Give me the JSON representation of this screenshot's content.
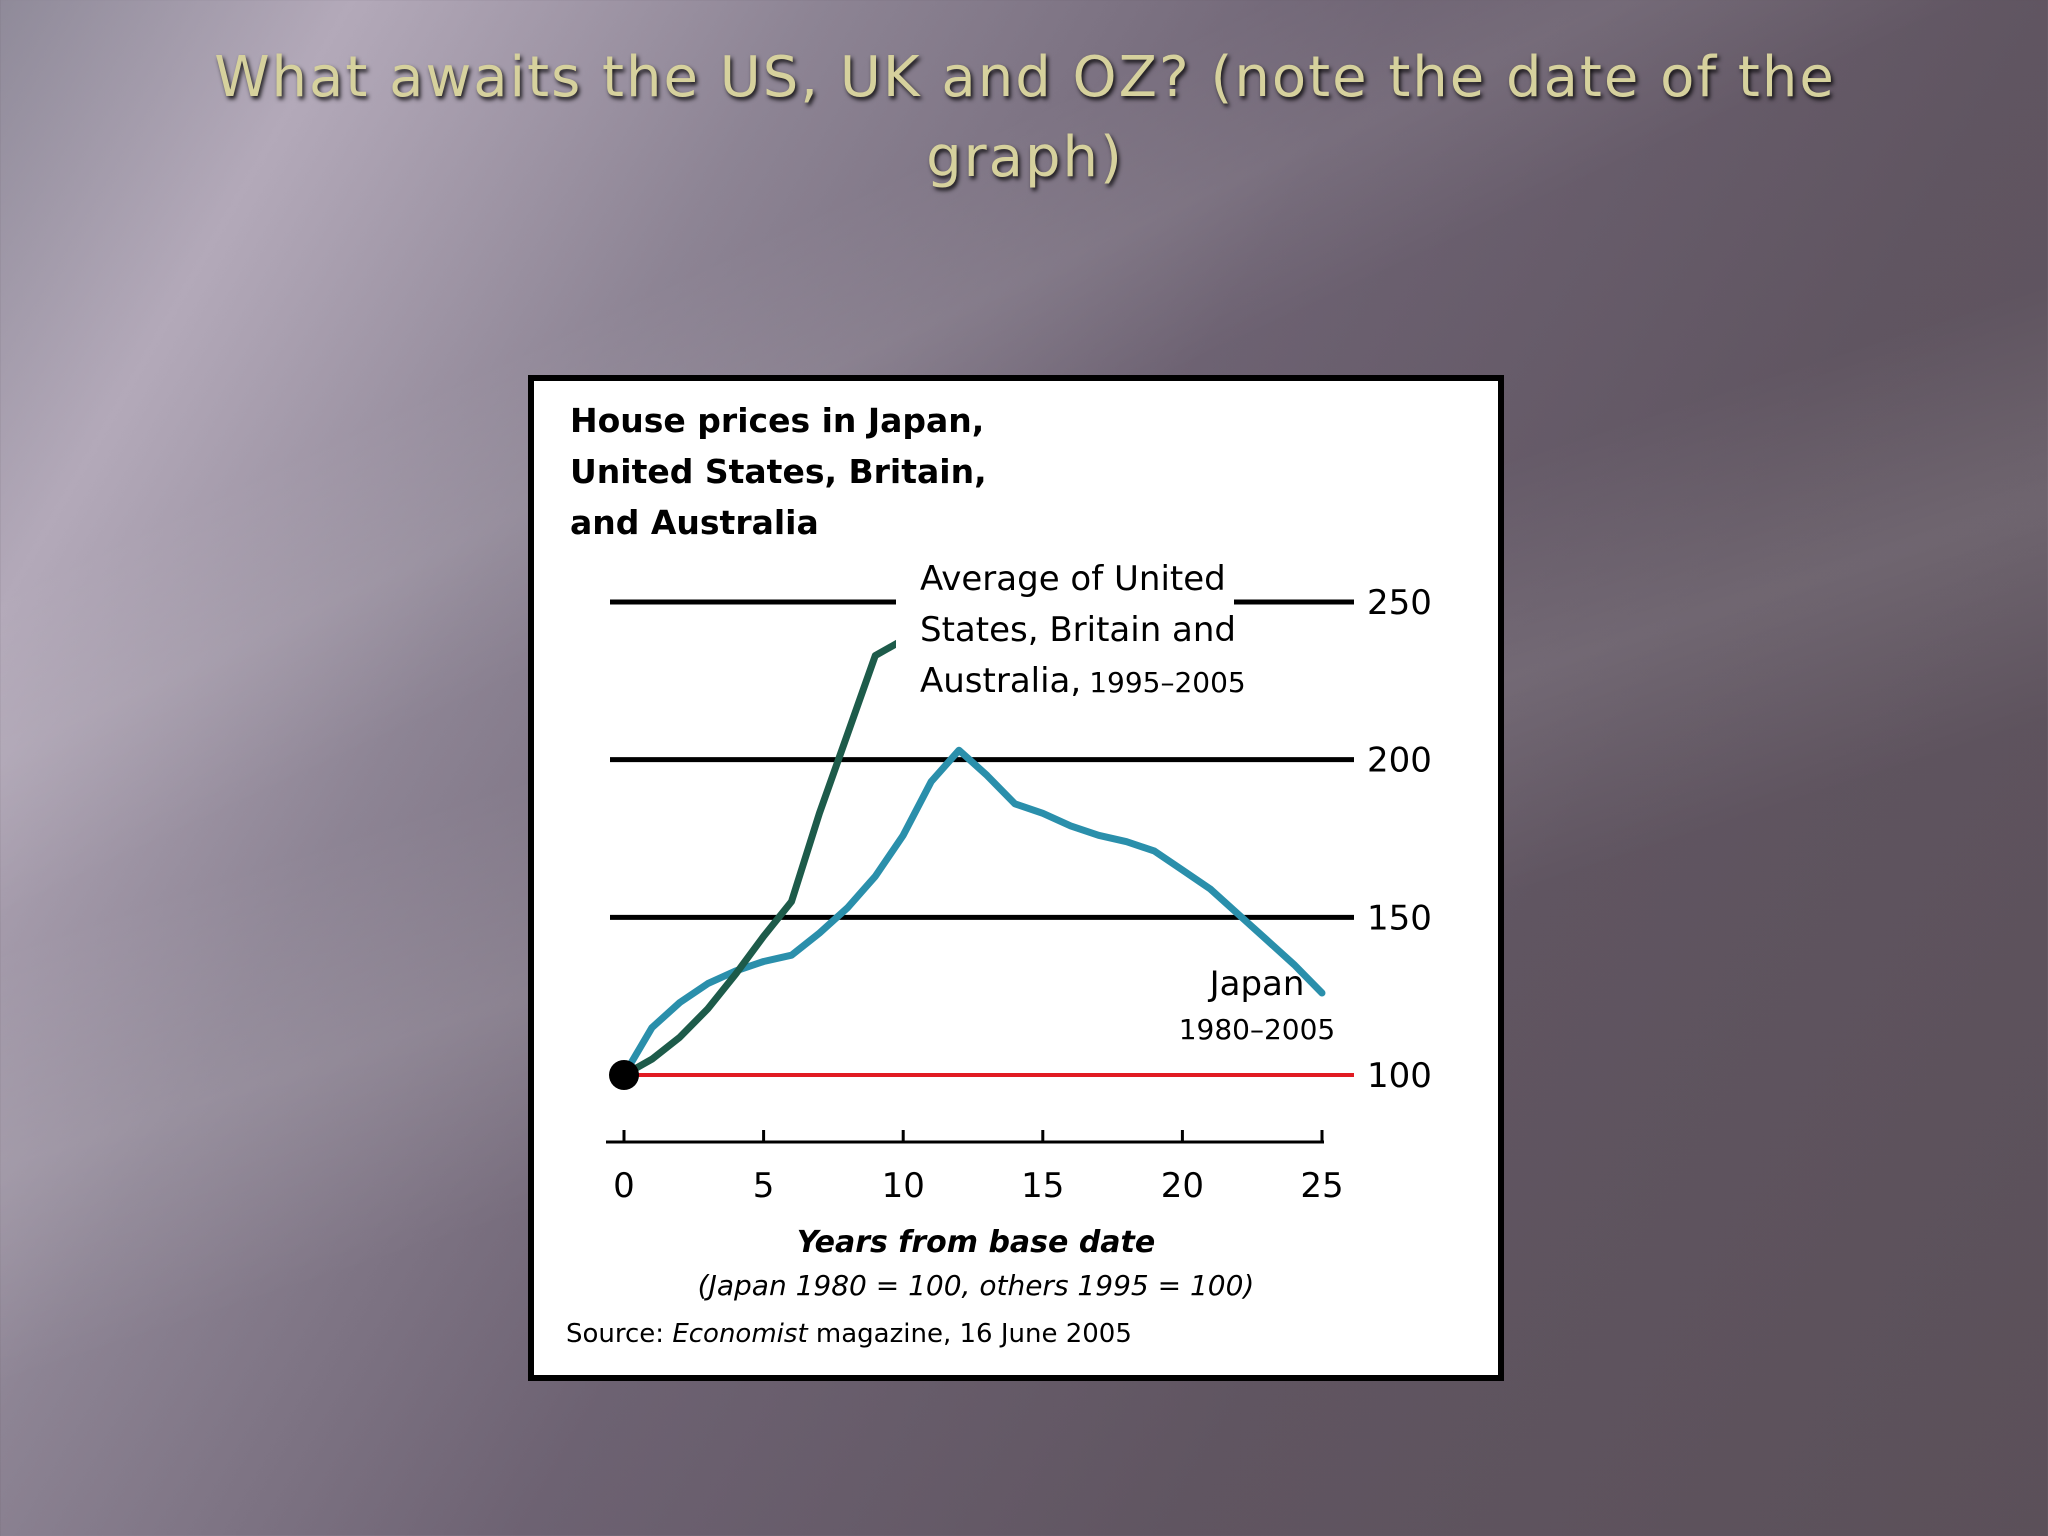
{
  "slide": {
    "title": "What awaits the US, UK and OZ?  (note the date of the graph)"
  },
  "colors": {
    "title": "#d6d19d",
    "us_uk_oz_line": "#1d5b4a",
    "japan_line": "#2a8fab",
    "baseline": "#e11b22"
  },
  "chart_data": {
    "type": "line",
    "title_lines": [
      "House prices in Japan,",
      "United States, Britain,",
      "and Australia"
    ],
    "xlabel": "Years from base date",
    "xlabel_note": "(Japan 1980 = 100, others 1995 = 100)",
    "source_prefix": "Source: ",
    "source_italic": "Economist",
    "source_suffix": " magazine,  16 June 2005",
    "xlim": [
      0,
      25
    ],
    "ylim": [
      80,
      260
    ],
    "x_ticks": [
      0,
      5,
      10,
      15,
      20,
      25
    ],
    "y_ticks": [
      100,
      150,
      200,
      250
    ],
    "y_axis_side": "right",
    "grid": true,
    "baseline": 100,
    "series": [
      {
        "label_lines": [
          "Average of United",
          "States, Britain and"
        ],
        "label_last": "Australia,",
        "label_years": "1995–2005",
        "x": [
          0,
          1,
          2,
          3,
          4,
          5,
          6,
          7,
          8,
          9,
          10
        ],
        "y": [
          100,
          105,
          112,
          121,
          132,
          144,
          155,
          183,
          208,
          233,
          238
        ]
      },
      {
        "label_lines": [
          "Japan"
        ],
        "label_years": "1980–2005",
        "x": [
          0,
          1,
          2,
          3,
          4,
          5,
          6,
          7,
          8,
          9,
          10,
          11,
          12,
          13,
          14,
          15,
          16,
          17,
          18,
          19,
          20,
          21,
          22,
          23,
          24,
          25
        ],
        "y": [
          100,
          115,
          123,
          129,
          133,
          136,
          138,
          145,
          153,
          163,
          176,
          193,
          203,
          195,
          186,
          183,
          179,
          176,
          174,
          171,
          165,
          159,
          151,
          143,
          135,
          126
        ]
      }
    ]
  }
}
